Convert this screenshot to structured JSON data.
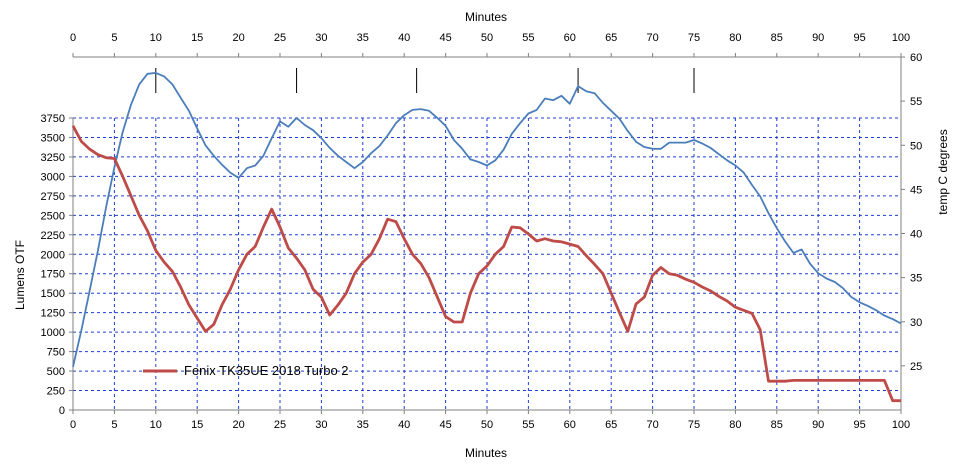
{
  "chart_data": {
    "type": "line",
    "x_bottom_label": "Minutes",
    "x_top_label": "Minutes",
    "y_left_label": "Lumens OTF",
    "y_right_label": "temp C degrees",
    "x_range": [
      0,
      100
    ],
    "x_ticks": [
      "0",
      "5",
      "10",
      "15",
      "20",
      "25",
      "30",
      "35",
      "40",
      "45",
      "50",
      "55",
      "60",
      "65",
      "70",
      "75",
      "80",
      "85",
      "90",
      "95",
      "100"
    ],
    "x_top_ticks": [
      "0",
      "5",
      "10",
      "15",
      "20",
      "25",
      "30",
      "35",
      "40",
      "45",
      "50",
      "55",
      "60",
      "65",
      "70",
      "75",
      "80",
      "85",
      "90",
      "95",
      "100"
    ],
    "y_left_range": [
      0,
      3750
    ],
    "y_left_ticks": [
      "0",
      "250",
      "500",
      "750",
      "1000",
      "1250",
      "1500",
      "1750",
      "2000",
      "2250",
      "2500",
      "2750",
      "3000",
      "3250",
      "3500",
      "3750"
    ],
    "y_right_range": [
      20,
      60
    ],
    "y_right_ticks": [
      "25",
      "30",
      "35",
      "40",
      "45",
      "50",
      "55",
      "60"
    ],
    "grid": true,
    "legend_position": "bottom-left",
    "colors": {
      "lumens": "#BE4B48",
      "temperature": "#4A7EBB",
      "grid": "#1F3FD0"
    },
    "series": [
      {
        "name": "Fenix TK35UE  2018  Turbo 2",
        "axis": "left",
        "x": [
          0,
          1,
          2,
          3,
          4,
          5,
          6,
          7,
          8,
          9,
          10,
          11,
          12,
          13,
          14,
          15,
          16,
          17,
          18,
          19,
          20,
          21,
          22,
          23,
          24,
          25,
          26,
          27,
          28,
          29,
          30,
          31,
          32,
          33,
          34,
          35,
          36,
          37,
          38,
          39,
          40,
          41,
          42,
          43,
          44,
          45,
          46,
          47,
          48,
          49,
          50,
          51,
          52,
          53,
          54,
          55,
          56,
          57,
          58,
          59,
          60,
          61,
          62,
          63,
          64,
          65,
          66,
          67,
          68,
          69,
          70,
          71,
          72,
          73,
          74,
          75,
          76,
          77,
          78,
          79,
          80,
          81,
          82,
          83,
          84,
          85,
          86,
          87,
          88,
          89,
          90,
          91,
          92,
          93,
          94,
          95,
          96,
          97,
          98,
          99,
          100
        ],
        "values": [
          3650,
          3450,
          3350,
          3280,
          3240,
          3230,
          3000,
          2750,
          2500,
          2300,
          2050,
          1900,
          1780,
          1580,
          1350,
          1180,
          1010,
          1100,
          1350,
          1550,
          1800,
          2000,
          2100,
          2350,
          2580,
          2350,
          2080,
          1950,
          1800,
          1550,
          1450,
          1220,
          1350,
          1500,
          1750,
          1900,
          2000,
          2200,
          2450,
          2420,
          2200,
          2000,
          1880,
          1700,
          1450,
          1200,
          1130,
          1130,
          1500,
          1750,
          1850,
          2000,
          2100,
          2350,
          2340,
          2260,
          2170,
          2200,
          2170,
          2160,
          2130,
          2100,
          1980,
          1870,
          1750,
          1500,
          1250,
          1010,
          1360,
          1450,
          1730,
          1830,
          1750,
          1730,
          1680,
          1640,
          1580,
          1530,
          1460,
          1400,
          1320,
          1280,
          1240,
          1030,
          370,
          370,
          370,
          380,
          380,
          380,
          380,
          380,
          380,
          380,
          380,
          380,
          380,
          380,
          380,
          120,
          120
        ]
      },
      {
        "name": "",
        "axis": "right",
        "x": [
          0,
          1,
          2,
          3,
          4,
          5,
          6,
          7,
          8,
          9,
          10,
          11,
          12,
          13,
          14,
          15,
          16,
          17,
          18,
          19,
          20,
          21,
          22,
          23,
          24,
          25,
          26,
          27,
          28,
          29,
          30,
          31,
          32,
          33,
          34,
          35,
          36,
          37,
          38,
          39,
          40,
          41,
          42,
          43,
          44,
          45,
          46,
          47,
          48,
          49,
          50,
          51,
          52,
          53,
          54,
          55,
          56,
          57,
          58,
          59,
          60,
          61,
          62,
          63,
          64,
          65,
          66,
          67,
          68,
          69,
          70,
          71,
          72,
          73,
          74,
          75,
          76,
          77,
          78,
          79,
          80,
          81,
          82,
          83,
          84,
          85,
          86,
          87,
          88,
          89,
          90,
          91,
          92,
          93,
          94,
          95,
          96,
          97,
          98,
          99,
          100
        ],
        "values": [
          24.9,
          29.0,
          33.5,
          38.0,
          43.0,
          47.5,
          51.5,
          54.6,
          56.9,
          58.1,
          58.2,
          57.8,
          56.9,
          55.4,
          53.9,
          51.9,
          50.0,
          48.8,
          47.8,
          46.9,
          46.3,
          47.4,
          47.7,
          48.8,
          50.8,
          52.7,
          52.1,
          53.1,
          52.3,
          51.7,
          50.8,
          49.7,
          48.8,
          48.1,
          47.4,
          48.1,
          49.1,
          49.9,
          51.1,
          52.5,
          53.4,
          54.0,
          54.1,
          53.9,
          53.1,
          52.2,
          50.6,
          49.6,
          48.4,
          48.1,
          47.7,
          48.3,
          49.5,
          51.3,
          52.5,
          53.6,
          54.0,
          55.3,
          55.1,
          55.6,
          54.7,
          56.7,
          56.1,
          55.9,
          54.8,
          53.9,
          53.0,
          51.6,
          50.4,
          49.8,
          49.6,
          49.6,
          50.3,
          50.3,
          50.3,
          50.6,
          50.2,
          49.7,
          49.0,
          48.3,
          47.7,
          46.9,
          45.5,
          44.2,
          42.3,
          40.6,
          39.1,
          37.8,
          38.2,
          36.6,
          35.5,
          34.9,
          34.5,
          33.8,
          32.8,
          32.2,
          31.8,
          31.3,
          30.7,
          30.3,
          29.8
        ]
      }
    ],
    "marker_x": [
      10,
      27,
      41.5,
      61,
      75
    ]
  }
}
